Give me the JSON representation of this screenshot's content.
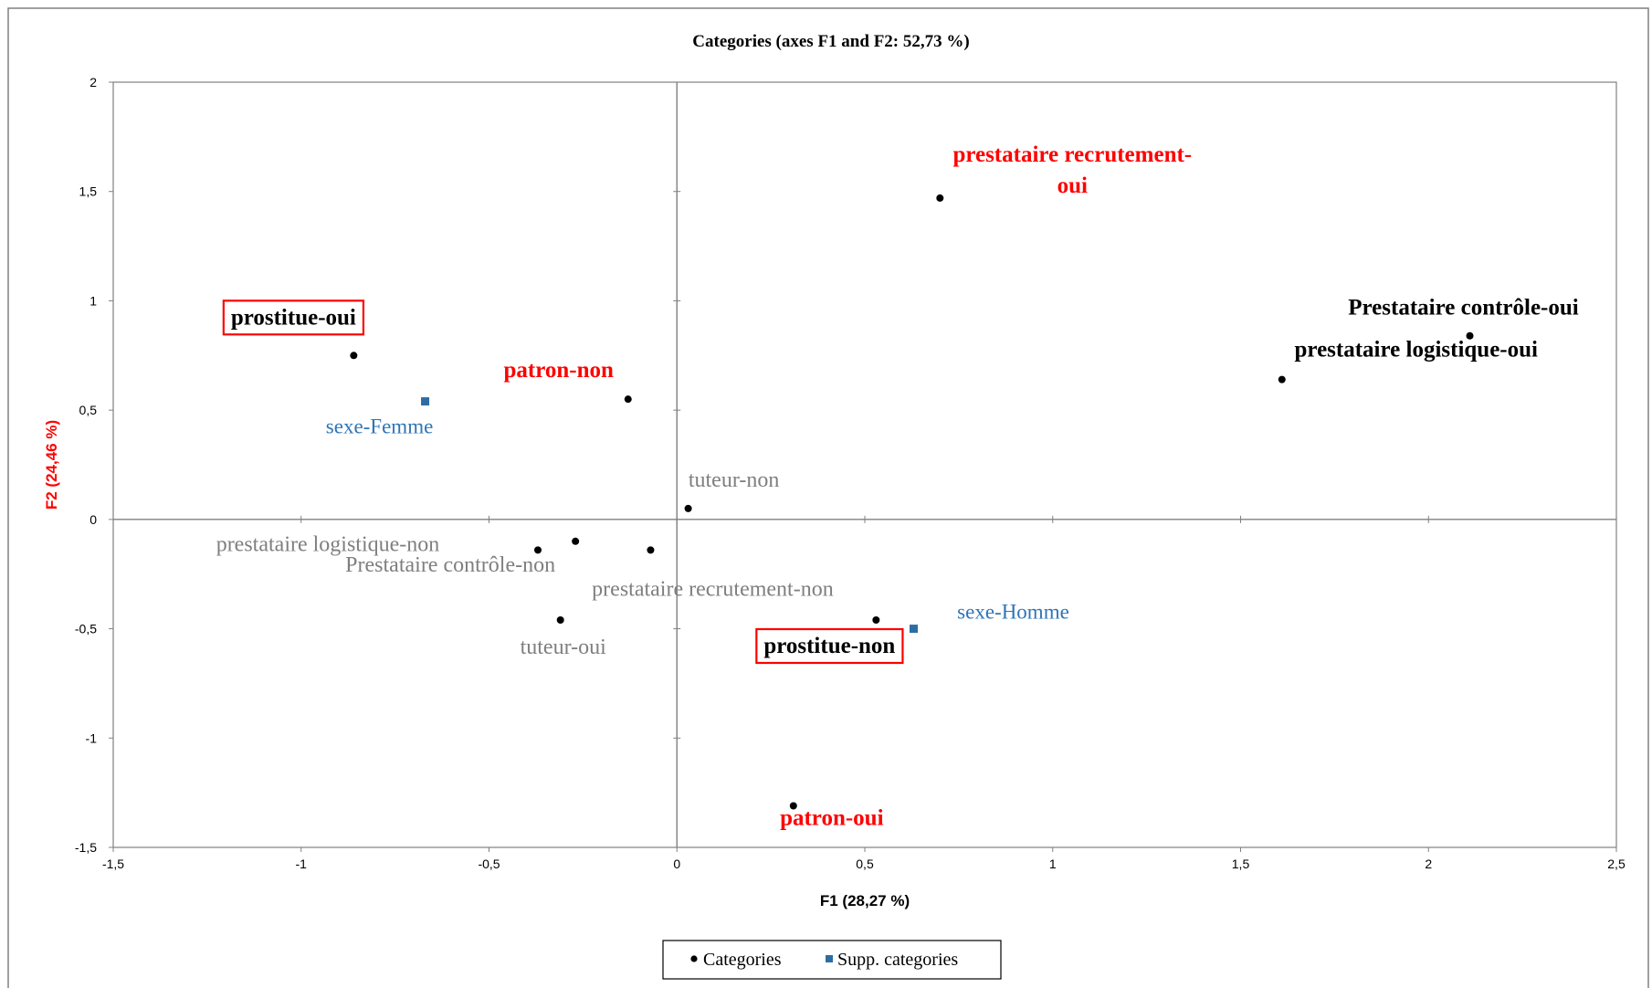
{
  "chart_data": {
    "type": "scatter",
    "title": "Categories (axes F1 and F2: 52,73 %)",
    "xlabel": "F1 (28,27 %)",
    "ylabel": "F2 (24,46 %)",
    "xlim": [
      -1.5,
      2.5
    ],
    "ylim": [
      -1.5,
      2
    ],
    "x_ticks": [
      -1.5,
      -1,
      -0.5,
      0,
      0.5,
      1,
      1.5,
      2,
      2.5
    ],
    "y_ticks": [
      -1.5,
      -1,
      -0.5,
      0,
      0.5,
      1,
      1.5,
      2
    ],
    "x_tick_labels": [
      "-1,5",
      "-1",
      "-0,5",
      "0",
      "0,5",
      "1",
      "1,5",
      "2",
      "2,5"
    ],
    "y_tick_labels": [
      "-1,5",
      "-1",
      "-0,5",
      "0",
      "0,5",
      "1",
      "1,5",
      "2"
    ],
    "grid": false,
    "legend_position": "bottom-center",
    "colors": {
      "marker_categories": "#000000",
      "marker_supp": "#2e6da4",
      "label_red": "#ff0000",
      "label_black": "#000000",
      "label_gray": "#7f7f7f",
      "label_blue": "#2e75b6",
      "box_red": "#ff0000",
      "ylabel": "#ff0000",
      "axis_zero": "#808080",
      "frame": "#808080"
    },
    "series": [
      {
        "name": "Categories",
        "marker": "circle",
        "points": [
          {
            "label": "prostitue-oui",
            "x": -0.86,
            "y": 0.75,
            "style": "black-bold",
            "boxed": true
          },
          {
            "label": "patron-non",
            "x": -0.13,
            "y": 0.55,
            "style": "red-bold",
            "boxed": false
          },
          {
            "label": "prestataire recrutement-oui",
            "x": 0.7,
            "y": 1.47,
            "style": "red-bold",
            "boxed": false
          },
          {
            "label": "Prestataire contrôle-oui",
            "x": 2.11,
            "y": 0.84,
            "style": "black-bold",
            "boxed": false
          },
          {
            "label": "prestataire logistique-oui",
            "x": 1.61,
            "y": 0.64,
            "style": "black-bold",
            "boxed": false
          },
          {
            "label": "tuteur-non",
            "x": 0.03,
            "y": 0.05,
            "style": "gray",
            "boxed": false
          },
          {
            "label": "prestataire logistique-non",
            "x": -0.37,
            "y": -0.14,
            "style": "gray",
            "boxed": false
          },
          {
            "label": "Prestataire contrôle-non",
            "x": -0.27,
            "y": -0.1,
            "style": "gray",
            "boxed": false
          },
          {
            "label": "prestataire recrutement-non",
            "x": -0.07,
            "y": -0.14,
            "style": "gray",
            "boxed": false
          },
          {
            "label": "tuteur-oui",
            "x": -0.31,
            "y": -0.46,
            "style": "gray",
            "boxed": false
          },
          {
            "label": "prostitue-non",
            "x": 0.53,
            "y": -0.46,
            "style": "black-bold",
            "boxed": true
          },
          {
            "label": "patron-oui",
            "x": 0.31,
            "y": -1.31,
            "style": "red-bold",
            "boxed": false
          }
        ]
      },
      {
        "name": "Supp. categories",
        "marker": "square",
        "points": [
          {
            "label": "sexe-Femme",
            "x": -0.67,
            "y": 0.54,
            "style": "blue",
            "boxed": false
          },
          {
            "label": "sexe-Homme",
            "x": 0.63,
            "y": -0.5,
            "style": "blue",
            "boxed": false
          }
        ]
      }
    ]
  }
}
